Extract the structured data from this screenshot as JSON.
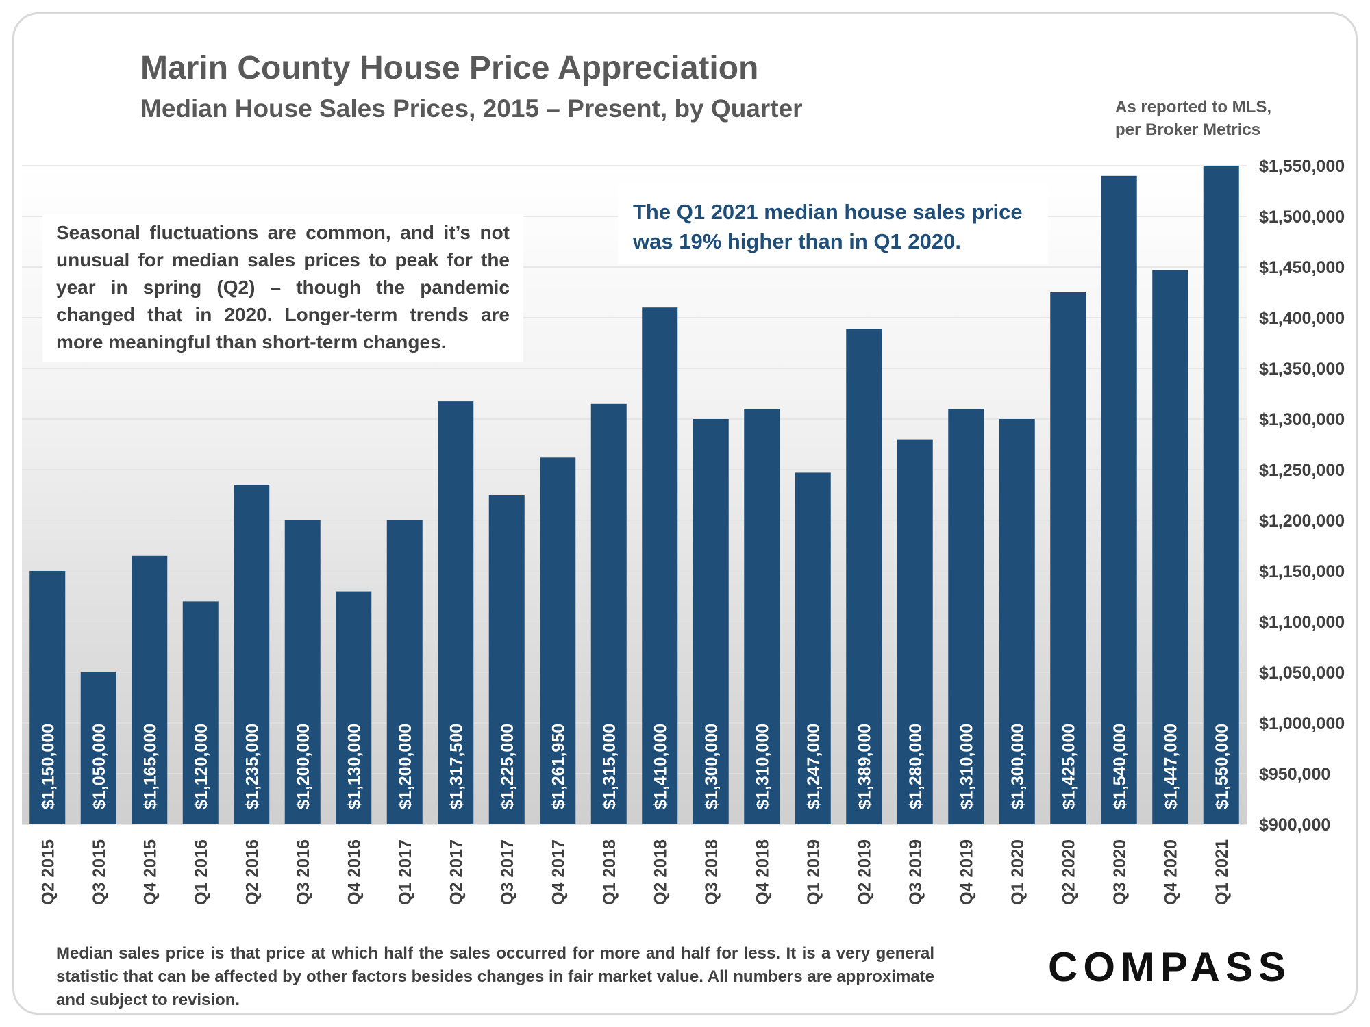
{
  "header": {
    "title": "Marin County House Price Appreciation",
    "subtitle": "Median House Sales Prices, 2015 – Present, by Quarter",
    "source_line1": "As reported to MLS,",
    "source_line2": "per Broker Metrics"
  },
  "annotations": {
    "seasonal_note": "Seasonal fluctuations are common, and it’s not unusual for median sales prices to peak for the year in spring (Q2) – though the pandemic changed that in 2020. Longer-term trends are more meaningful than short-term changes.",
    "callout_line1": "The Q1 2021 median house sales price",
    "callout_line2": "was 19% higher than in Q1 2020."
  },
  "footer": {
    "footnote": "Median sales price is that price at which half the sales occurred for more and half for less. It is a very general statistic that can be affected by other factors besides changes in fair market value. All numbers are approximate and subject to revision.",
    "logo_text": "COMPASS"
  },
  "colors": {
    "bar": "#1f4e79",
    "bar_label": "#ffffff",
    "axis_text": "#404040",
    "title": "#595959"
  },
  "chart_data": {
    "type": "bar",
    "title": "Marin County House Price Appreciation",
    "subtitle": "Median House Sales Prices, 2015 – Present, by Quarter",
    "xlabel": "",
    "ylabel": "",
    "ylim": [
      900000,
      1550000
    ],
    "y_axis_position": "right",
    "grid": true,
    "legend": "none",
    "y_ticks": [
      900000,
      950000,
      1000000,
      1050000,
      1100000,
      1150000,
      1200000,
      1250000,
      1300000,
      1350000,
      1400000,
      1450000,
      1500000,
      1550000
    ],
    "y_tick_labels": [
      "$900,000",
      "$950,000",
      "$1,000,000",
      "$1,050,000",
      "$1,100,000",
      "$1,150,000",
      "$1,200,000",
      "$1,250,000",
      "$1,300,000",
      "$1,350,000",
      "$1,400,000",
      "$1,450,000",
      "$1,500,000",
      "$1,550,000"
    ],
    "categories": [
      "Q2 2015",
      "Q3 2015",
      "Q4 2015",
      "Q1 2016",
      "Q2 2016",
      "Q3 2016",
      "Q4 2016",
      "Q1 2017",
      "Q2 2017",
      "Q3 2017",
      "Q4 2017",
      "Q1 2018",
      "Q2 2018",
      "Q3 2018",
      "Q4 2018",
      "Q1 2019",
      "Q2 2019",
      "Q3 2019",
      "Q4 2019",
      "Q1 2020",
      "Q2 2020",
      "Q3 2020",
      "Q4 2020",
      "Q1 2021"
    ],
    "values": [
      1150000,
      1050000,
      1165000,
      1120000,
      1235000,
      1200000,
      1130000,
      1200000,
      1317500,
      1225000,
      1261950,
      1315000,
      1410000,
      1300000,
      1310000,
      1247000,
      1389000,
      1280000,
      1310000,
      1300000,
      1425000,
      1540000,
      1447000,
      1550000
    ],
    "data_labels": [
      "$1,150,000",
      "$1,050,000",
      "$1,165,000",
      "$1,120,000",
      "$1,235,000",
      "$1,200,000",
      "$1,130,000",
      "$1,200,000",
      "$1,317,500",
      "$1,225,000",
      "$1,261,950",
      "$1,315,000",
      "$1,410,000",
      "$1,300,000",
      "$1,310,000",
      "$1,247,000",
      "$1,389,000",
      "$1,280,000",
      "$1,310,000",
      "$1,300,000",
      "$1,425,000",
      "$1,540,000",
      "$1,447,000",
      "$1,550,000"
    ]
  }
}
